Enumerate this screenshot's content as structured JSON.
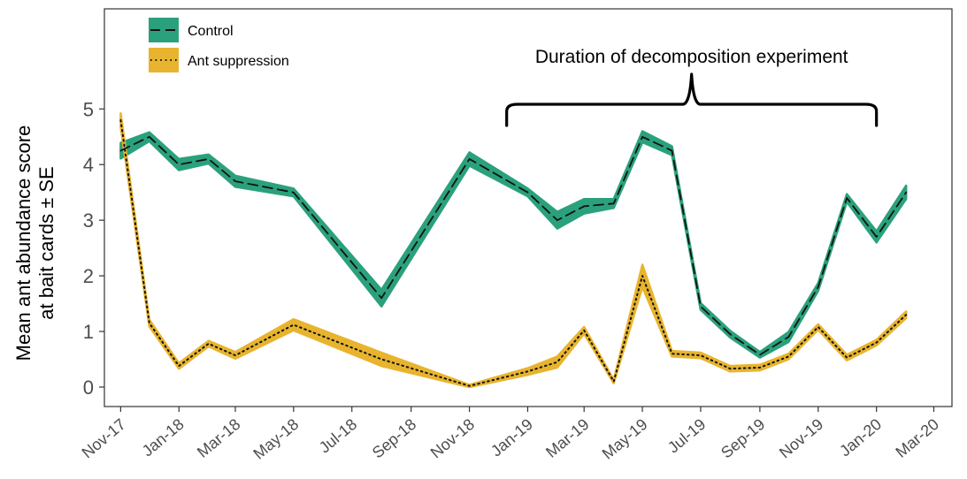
{
  "chart_data": {
    "type": "line",
    "ylabel_line1": "Mean ant abundance score",
    "ylabel_line2": "at bait cards ± SE",
    "ylim": [
      -0.35,
      6.8
    ],
    "xlim": [
      "2017-10-15",
      "2020-03-20"
    ],
    "x_ticks": [
      "Nov-17",
      "Jan-18",
      "Mar-18",
      "May-18",
      "Jul-18",
      "Sep-18",
      "Nov-18",
      "Jan-19",
      "Mar-19",
      "May-19",
      "Jul-19",
      "Sep-19",
      "Nov-19",
      "Jan-20",
      "Mar-20"
    ],
    "x_tick_dates": [
      "2017-11-01",
      "2018-01-01",
      "2018-03-01",
      "2018-05-01",
      "2018-07-01",
      "2018-09-01",
      "2018-11-01",
      "2019-01-01",
      "2019-03-01",
      "2019-05-01",
      "2019-07-01",
      "2019-09-01",
      "2019-11-01",
      "2020-01-01",
      "2020-03-01"
    ],
    "y_ticks": [
      0,
      1,
      2,
      3,
      4,
      5
    ],
    "grid": false,
    "legend_position": "top-left",
    "series": [
      {
        "name": "Control",
        "color": "#2aa17c",
        "line_style": "dashed",
        "x": [
          "2017-11-01",
          "2017-12-01",
          "2018-01-01",
          "2018-02-01",
          "2018-03-01",
          "2018-05-01",
          "2018-08-01",
          "2018-11-01",
          "2019-01-01",
          "2019-02-01",
          "2019-03-01",
          "2019-04-01",
          "2019-05-01",
          "2019-06-01",
          "2019-07-01",
          "2019-08-01",
          "2019-09-01",
          "2019-10-01",
          "2019-11-01",
          "2019-12-01",
          "2020-01-01",
          "2020-02-01"
        ],
        "values": [
          4.25,
          4.5,
          4.0,
          4.1,
          3.7,
          3.5,
          1.6,
          4.1,
          3.5,
          3.0,
          3.25,
          3.3,
          4.5,
          4.25,
          1.45,
          0.95,
          0.58,
          0.9,
          1.8,
          3.4,
          2.7,
          3.5
        ],
        "se": [
          0.14,
          0.08,
          0.1,
          0.08,
          0.1,
          0.07,
          0.15,
          0.12,
          0.07,
          0.15,
          0.13,
          0.08,
          0.1,
          0.08,
          0.06,
          0.06,
          0.05,
          0.09,
          0.07,
          0.07,
          0.1,
          0.12
        ]
      },
      {
        "name": "Ant suppression",
        "color": "#e8b42e",
        "line_style": "dotted",
        "x": [
          "2017-11-01",
          "2017-12-01",
          "2018-01-01",
          "2018-02-01",
          "2018-03-01",
          "2018-05-01",
          "2018-08-01",
          "2018-11-01",
          "2019-01-01",
          "2019-02-01",
          "2019-03-01",
          "2019-04-01",
          "2019-05-01",
          "2019-06-01",
          "2019-07-01",
          "2019-08-01",
          "2019-09-01",
          "2019-10-01",
          "2019-11-01",
          "2019-12-01",
          "2020-01-01",
          "2020-02-01"
        ],
        "values": [
          4.8,
          1.15,
          0.38,
          0.78,
          0.57,
          1.12,
          0.5,
          0.02,
          0.28,
          0.45,
          1.02,
          0.1,
          2.0,
          0.6,
          0.57,
          0.33,
          0.35,
          0.55,
          1.08,
          0.53,
          0.8,
          1.3
        ],
        "se": [
          0.12,
          0.06,
          0.05,
          0.05,
          0.06,
          0.1,
          0.12,
          0.02,
          0.06,
          0.1,
          0.06,
          0.03,
          0.2,
          0.05,
          0.05,
          0.05,
          0.05,
          0.05,
          0.05,
          0.05,
          0.05,
          0.06
        ]
      }
    ],
    "annotation": {
      "text": "Duration of decomposition experiment",
      "x_start": "2018-12-10",
      "x_end": "2020-01-01"
    }
  }
}
